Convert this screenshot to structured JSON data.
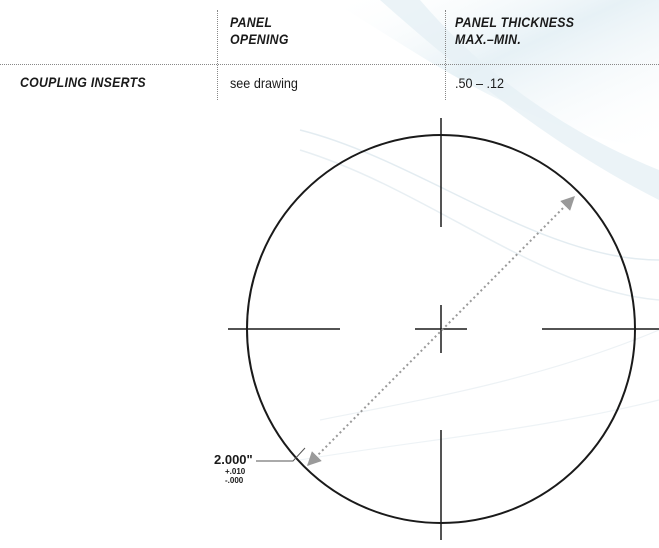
{
  "table": {
    "headers": {
      "opening_line1": "PANEL",
      "opening_line2": "OPENING",
      "thickness_line1": "PANEL THICKNESS",
      "thickness_line2": "MAX.–MIN."
    },
    "row": {
      "label": "COUPLING INSERTS",
      "opening": "see drawing",
      "thickness": ".50 – .12"
    }
  },
  "drawing": {
    "diameter": "2.000\"",
    "tolerance_plus": "+.010",
    "tolerance_minus": "-.000"
  },
  "colors": {
    "stroke": "#1a1a1a",
    "dimension_arrow": "#9a9a9a",
    "background_swoosh": "#d6e6ee"
  }
}
